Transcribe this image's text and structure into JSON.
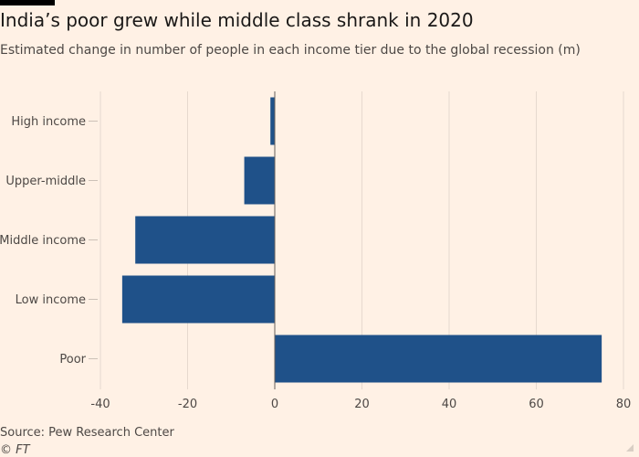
{
  "title": "India’s poor grew while middle class shrank in 2020",
  "subtitle": "Estimated change in number of people in each income tier due to the global recession (m)",
  "source": "Source: Pew Research Center",
  "copyright": "© FT",
  "colors": {
    "background": "#fff1e5",
    "bar": "#1f5189",
    "gridline": "#e6d9ce",
    "tick": "#ccc1b7",
    "text": "#4d4845"
  },
  "chart_data": {
    "type": "bar",
    "orientation": "horizontal",
    "title": "India’s poor grew while middle class shrank in 2020",
    "subtitle": "Estimated change in number of people in each income tier due to the global recession (m)",
    "categories": [
      "High income",
      "Upper-middle",
      "Middle income",
      "Low income",
      "Poor"
    ],
    "values": [
      -1,
      -7,
      -32,
      -35,
      75
    ],
    "xlim": [
      -40,
      80
    ],
    "xticks": [
      -40,
      -20,
      0,
      20,
      40,
      60,
      80
    ],
    "xtick_labels": [
      "-40",
      "-20",
      "0",
      "20",
      "40",
      "60",
      "80"
    ],
    "xlabel": "",
    "ylabel": "",
    "grid": true,
    "legend": "none"
  }
}
